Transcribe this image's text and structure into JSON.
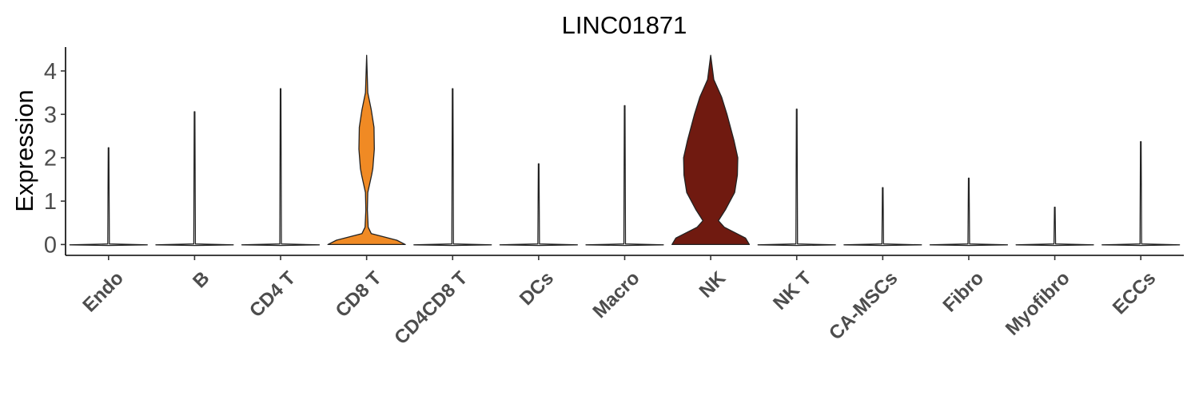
{
  "chart_data": {
    "type": "violin",
    "title": "LINC01871",
    "xlabel": "",
    "ylabel": "Expression",
    "ylim": [
      -0.25,
      4.55
    ],
    "yticks": [
      0,
      1,
      2,
      3,
      4
    ],
    "grid": false,
    "legend": "none",
    "categories": [
      "Endo",
      "B",
      "CD4 T",
      "CD8 T",
      "CD4CD8 T",
      "DCs",
      "Macro",
      "NK",
      "NK T",
      "CA-MSCs",
      "Fibro",
      "Myofibro",
      "ECCs"
    ],
    "max_values": [
      2.23,
      3.06,
      3.59,
      4.36,
      3.59,
      1.86,
      3.2,
      4.36,
      3.12,
      1.31,
      1.53,
      0.86,
      2.37
    ],
    "fill_colors": [
      "#ffffff",
      "#ffffff",
      "#ffffff",
      "#f08a24",
      "#ffffff",
      "#ffffff",
      "#ffffff",
      "#701a10",
      "#ffffff",
      "#ffffff",
      "#ffffff",
      "#ffffff",
      "#ffffff"
    ],
    "density_profiles": {
      "CD8 T": [
        [
          0,
          1.0
        ],
        [
          0.1,
          0.78
        ],
        [
          0.25,
          0.12
        ],
        [
          0.4,
          0.04
        ],
        [
          0.8,
          0.02
        ],
        [
          1.2,
          0.03
        ],
        [
          1.6,
          0.13
        ],
        [
          1.75,
          0.16
        ],
        [
          2.2,
          0.2
        ],
        [
          2.7,
          0.19
        ],
        [
          3.1,
          0.12
        ],
        [
          3.5,
          0.03
        ],
        [
          4.36,
          0.0
        ]
      ],
      "NK": [
        [
          0,
          1.0
        ],
        [
          0.15,
          0.9
        ],
        [
          0.4,
          0.35
        ],
        [
          0.55,
          0.2
        ],
        [
          0.8,
          0.38
        ],
        [
          1.2,
          0.62
        ],
        [
          1.6,
          0.69
        ],
        [
          2.0,
          0.7
        ],
        [
          2.4,
          0.6
        ],
        [
          3.0,
          0.42
        ],
        [
          3.4,
          0.28
        ],
        [
          3.8,
          0.08
        ],
        [
          4.36,
          0.0
        ]
      ]
    }
  }
}
